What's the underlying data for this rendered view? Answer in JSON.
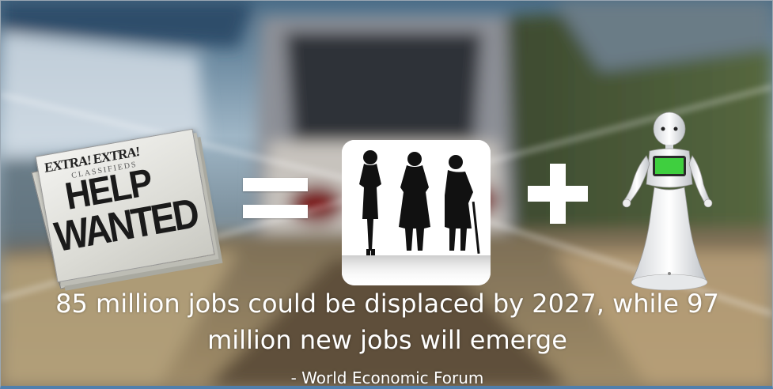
{
  "newspaper": {
    "top_line": "EXTRA! EXTRA!",
    "subline": "CLASSIFIEDS",
    "headline_1": "HELP",
    "headline_2": "WANTED"
  },
  "caption": {
    "line_1": "85 million jobs could be displaced by 2027, while 97",
    "line_2": "million new jobs will emerge",
    "attribution": "- World Economic Forum"
  },
  "colors": {
    "caption_text": "#ffffff",
    "robot_screen": "#3fcf3f",
    "frame_accent": "#4f7fae"
  },
  "icons": [
    "equals-sign",
    "plus-sign",
    "people-silhouettes",
    "humanoid-robot"
  ]
}
